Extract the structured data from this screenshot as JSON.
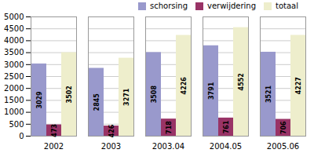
{
  "chart_data": {
    "type": "bar",
    "categories": [
      "2002",
      "2003",
      "2003.04",
      "2004.05",
      "2005.06"
    ],
    "series": [
      {
        "name": "schorsing",
        "color": "#9999cc",
        "values": [
          3029,
          2845,
          3508,
          3791,
          3521
        ]
      },
      {
        "name": "verwijdering",
        "color": "#993366",
        "values": [
          473,
          426,
          718,
          761,
          706
        ]
      },
      {
        "name": "totaal",
        "color": "#eeeecc",
        "values": [
          3502,
          3271,
          4226,
          4552,
          4227
        ]
      }
    ],
    "ylim": [
      0,
      5000
    ],
    "yticks": [
      0,
      500,
      1000,
      1500,
      2000,
      2500,
      3000,
      3500,
      4000,
      4500,
      5000
    ],
    "grid": true,
    "legend": "upper right",
    "data_labels": true
  }
}
